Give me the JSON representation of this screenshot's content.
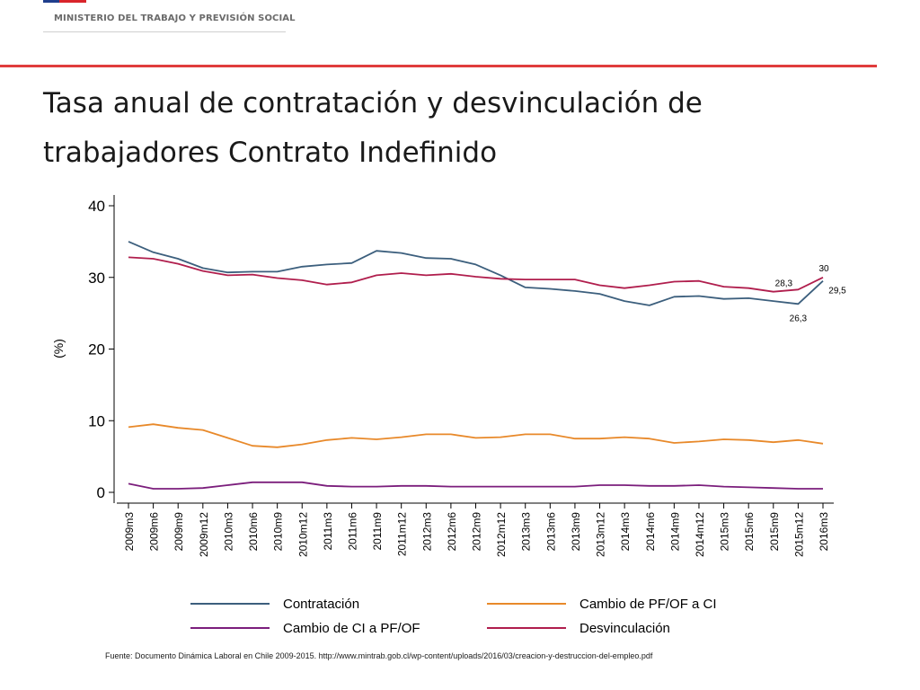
{
  "header": {
    "ministry": "MINISTERIO DEL TRABAJO Y PREVISIÓN SOCIAL",
    "title_line1": "Tasa anual de contratación y desvinculación de",
    "title_line2": "trabajadores Contrato Indefinido",
    "flag_colors": [
      "#1f3e8c",
      "#d9252b"
    ],
    "rule_color": "#e03c3c"
  },
  "chart_data": {
    "type": "line",
    "title": "Tasa anual de contratación y desvinculación de trabajadores Contrato Indefinido",
    "xlabel": "",
    "ylabel": "(%)",
    "ylim": [
      0,
      40
    ],
    "yticks": [
      0,
      10,
      20,
      30,
      40
    ],
    "grid": false,
    "legend_position": "bottom",
    "categories": [
      "2009m3",
      "2009m6",
      "2009m9",
      "2009m12",
      "2010m3",
      "2010m6",
      "2010m9",
      "2010m12",
      "2011m3",
      "2011m6",
      "2011m9",
      "2011m12",
      "2012m3",
      "2012m6",
      "2012m9",
      "2012m12",
      "2013m3",
      "2013m6",
      "2013m9",
      "2013m12",
      "2014m3",
      "2014m6",
      "2014m9",
      "2014m12",
      "2015m3",
      "2015m6",
      "2015m9",
      "2015m12",
      "2016m3"
    ],
    "series": [
      {
        "name": "Contratación",
        "color": "#3c5f7d",
        "values": [
          35.0,
          33.5,
          32.6,
          31.3,
          30.7,
          30.8,
          30.8,
          31.5,
          31.8,
          32.0,
          33.7,
          33.4,
          32.7,
          32.6,
          31.8,
          30.3,
          28.6,
          28.4,
          28.1,
          27.7,
          26.7,
          26.1,
          27.3,
          27.4,
          27.0,
          27.1,
          26.7,
          26.3,
          29.5
        ]
      },
      {
        "name": "Cambio de PF/OF a CI",
        "color": "#e8892a",
        "values": [
          9.1,
          9.5,
          9.0,
          8.7,
          7.6,
          6.5,
          6.3,
          6.7,
          7.3,
          7.6,
          7.4,
          7.7,
          8.1,
          8.1,
          7.6,
          7.7,
          8.1,
          8.1,
          7.5,
          7.5,
          7.7,
          7.5,
          6.9,
          7.1,
          7.4,
          7.3,
          7.0,
          7.3,
          6.8
        ]
      },
      {
        "name": "Cambio de CI a PF/OF",
        "color": "#7b1e7c",
        "values": [
          1.2,
          0.5,
          0.5,
          0.6,
          1.0,
          1.4,
          1.4,
          1.4,
          0.9,
          0.8,
          0.8,
          0.9,
          0.9,
          0.8,
          0.8,
          0.8,
          0.8,
          0.8,
          0.8,
          1.0,
          1.0,
          0.9,
          0.9,
          1.0,
          0.8,
          0.7,
          0.6,
          0.5,
          0.5
        ]
      },
      {
        "name": "Desvinculación",
        "color": "#b01e4d",
        "values": [
          32.8,
          32.6,
          31.9,
          30.9,
          30.3,
          30.4,
          29.9,
          29.6,
          29.0,
          29.3,
          30.3,
          30.6,
          30.3,
          30.5,
          30.1,
          29.8,
          29.7,
          29.7,
          29.7,
          28.9,
          28.5,
          28.9,
          29.4,
          29.5,
          28.7,
          28.5,
          28.0,
          28.3,
          30.0
        ]
      }
    ],
    "annotations": [
      {
        "text": "30",
        "category": "2016m3",
        "value": 30.0
      },
      {
        "text": "28,3",
        "category": "2015m12",
        "value": 28.3
      },
      {
        "text": "29,5",
        "category": "2016m3",
        "value": 29.5
      },
      {
        "text": "26,3",
        "category": "2015m12",
        "value": 26.3
      }
    ]
  },
  "footer": {
    "source": "Fuente: Documento Dinámica Laboral en Chile 2009-2015. http://www.mintrab.gob.cl/wp-content/uploads/2016/03/creacion-y-destruccion-del-empleo.pdf"
  }
}
